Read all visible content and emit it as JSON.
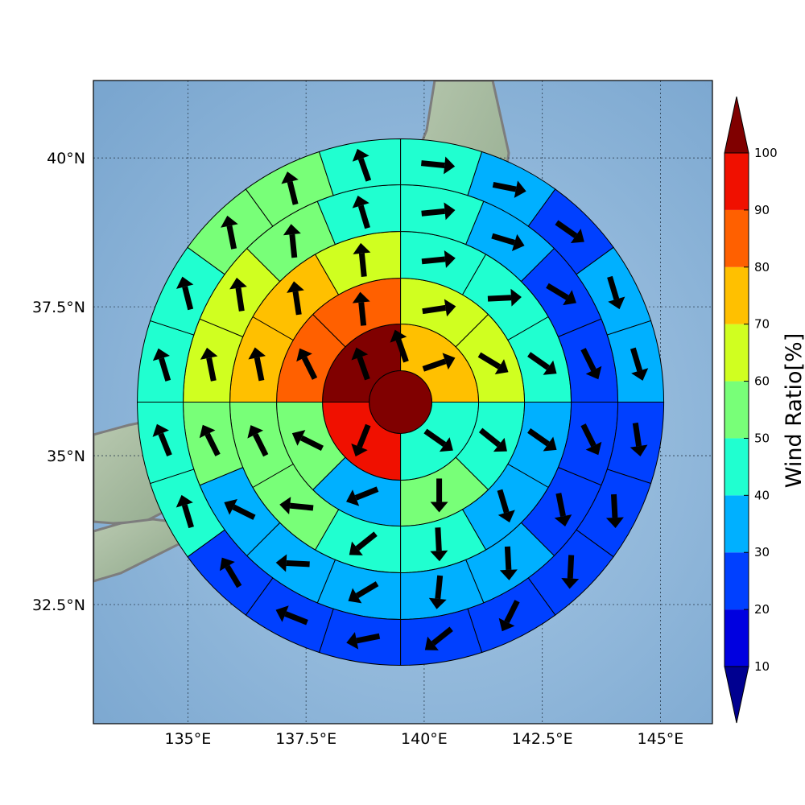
{
  "chart_data": {
    "type": "heatmap",
    "subtype": "polar-sector-wind-map",
    "map": {
      "lon_range": [
        133.0,
        146.1
      ],
      "lat_range": [
        30.5,
        41.3
      ],
      "x_ticks": [
        "135°E",
        "137.5°E",
        "140°E",
        "142.5°E",
        "145°E"
      ],
      "y_ticks": [
        "40°N",
        "37.5°N",
        "35°N",
        "32.5°N"
      ],
      "grid": true
    },
    "colorbar": {
      "label": "Wind Ratio[%]",
      "ticks": [
        "10",
        "20",
        "30",
        "40",
        "50",
        "60",
        "70",
        "80",
        "90",
        "100"
      ],
      "levels": [
        10,
        20,
        30,
        40,
        50,
        60,
        70,
        80,
        90,
        100
      ],
      "colors": [
        "#0000e0",
        "#0040ff",
        "#00b0ff",
        "#20ffd0",
        "#78ff78",
        "#d0ff20",
        "#ffc000",
        "#ff6000",
        "#f01000"
      ],
      "under_color": "#000090",
      "over_color": "#800000",
      "extend": "both"
    },
    "center": {
      "lon": 139.5,
      "lat": 35.9
    },
    "rings": [
      {
        "sectors": 1,
        "values": [
          100
        ]
      },
      {
        "sectors": 4,
        "values": [
          72,
          45,
          92,
          100
        ]
      },
      {
        "sectors": 8,
        "values": [
          65,
          65,
          45,
          52,
          35,
          52,
          82,
          82
        ]
      },
      {
        "sectors": 12,
        "values": [
          45,
          45,
          42,
          38,
          35,
          45,
          40,
          52,
          52,
          72,
          72,
          65
        ]
      },
      {
        "sectors": 16,
        "values": [
          45,
          35,
          25,
          25,
          25,
          25,
          35,
          35,
          35,
          35,
          35,
          52,
          65,
          65,
          55,
          45
        ]
      },
      {
        "sectors": 20,
        "values": [
          45,
          35,
          25,
          35,
          35,
          25,
          25,
          25,
          25,
          25,
          25,
          25,
          25,
          45,
          45,
          45,
          45,
          55,
          55,
          45
        ]
      }
    ],
    "vectors": [
      [
        [
          -0.35,
          1
        ]
      ],
      [
        [
          1,
          0.35
        ],
        [
          1,
          -0.7
        ],
        [
          -0.4,
          -1
        ],
        [
          -0.35,
          1
        ]
      ],
      [
        [
          1,
          0.15
        ],
        [
          1,
          -0.6
        ],
        [
          1,
          -0.8
        ],
        [
          0,
          -1
        ],
        [
          -1,
          -0.4
        ],
        [
          -1,
          0.5
        ],
        [
          -0.5,
          1
        ],
        [
          -0.1,
          1
        ]
      ],
      [
        [
          1,
          0.1
        ],
        [
          1,
          0.05
        ],
        [
          1,
          -0.7
        ],
        [
          1,
          -0.7
        ],
        [
          0.3,
          -1
        ],
        [
          0.05,
          -1
        ],
        [
          -1,
          -0.8
        ],
        [
          -1,
          0.1
        ],
        [
          -0.5,
          1
        ],
        [
          -0.2,
          1
        ],
        [
          -0.15,
          1
        ],
        [
          -0.1,
          1
        ]
      ],
      [
        [
          1,
          0.1
        ],
        [
          1,
          -0.3
        ],
        [
          1,
          -0.6
        ],
        [
          0.5,
          -1
        ],
        [
          0.5,
          -1
        ],
        [
          0.2,
          -1
        ],
        [
          0.05,
          -1
        ],
        [
          -0.1,
          -1
        ],
        [
          -1,
          -0.6
        ],
        [
          -1,
          0.05
        ],
        [
          -1,
          0.5
        ],
        [
          -0.5,
          1
        ],
        [
          -0.2,
          1
        ],
        [
          -0.15,
          1
        ],
        [
          -0.1,
          1
        ],
        [
          -0.3,
          1
        ]
      ],
      [
        [
          1,
          -0.1
        ],
        [
          1,
          -0.2
        ],
        [
          1,
          -0.7
        ],
        [
          0.3,
          -1
        ],
        [
          0.3,
          -1
        ],
        [
          0.15,
          -1
        ],
        [
          0.05,
          -1
        ],
        [
          -0.05,
          -1
        ],
        [
          -0.5,
          -1
        ],
        [
          -1,
          -0.8
        ],
        [
          -1,
          -0.2
        ],
        [
          -1,
          0.4
        ],
        [
          -0.6,
          1
        ],
        [
          -0.3,
          1
        ],
        [
          -0.4,
          1
        ],
        [
          -0.3,
          1
        ],
        [
          -0.25,
          1
        ],
        [
          -0.2,
          1
        ],
        [
          -0.25,
          1
        ],
        [
          -0.35,
          1
        ]
      ]
    ]
  }
}
